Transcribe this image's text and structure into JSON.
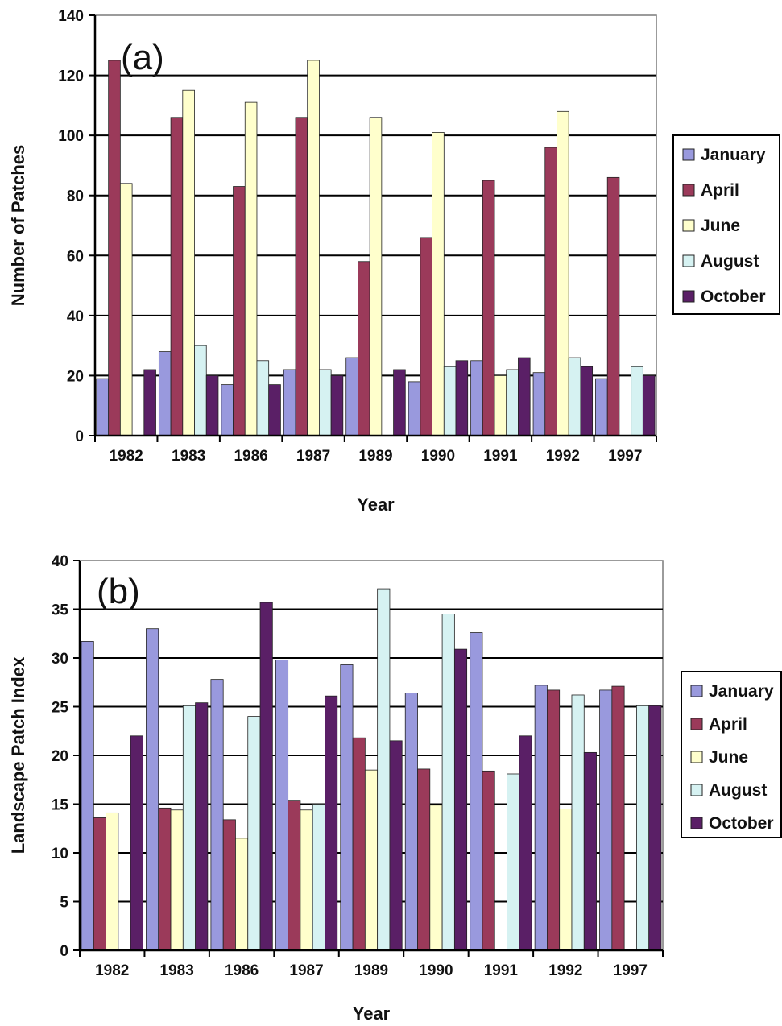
{
  "series_colors": {
    "January": "#9999dd",
    "April": "#9b3a5a",
    "June": "#ffffcc",
    "August": "#d6f2f2",
    "October": "#5a1f66"
  },
  "chart_data": [
    {
      "type": "bar",
      "panel_label": "(a)",
      "xlabel": "Year",
      "ylabel": "Number of Patches",
      "ylim": [
        0,
        140
      ],
      "yticks": [
        0,
        20,
        40,
        60,
        80,
        100,
        120,
        140
      ],
      "grid": true,
      "legend_position": "right",
      "categories": [
        "1982",
        "1983",
        "1986",
        "1987",
        "1989",
        "1990",
        "1991",
        "1992",
        "1997"
      ],
      "series": [
        {
          "name": "January",
          "values": [
            19,
            28,
            17,
            22,
            26,
            18,
            25,
            21,
            19
          ]
        },
        {
          "name": "April",
          "values": [
            125,
            106,
            83,
            106,
            58,
            66,
            85,
            96,
            86
          ]
        },
        {
          "name": "June",
          "values": [
            84,
            115,
            111,
            125,
            106,
            101,
            20,
            108,
            0
          ]
        },
        {
          "name": "August",
          "values": [
            0,
            30,
            25,
            22,
            0,
            23,
            22,
            26,
            23
          ]
        },
        {
          "name": "October",
          "values": [
            22,
            20,
            17,
            20,
            22,
            25,
            26,
            23,
            20
          ]
        }
      ]
    },
    {
      "type": "bar",
      "panel_label": "(b)",
      "xlabel": "Year",
      "ylabel": "Landscape Patch Index",
      "ylim": [
        0,
        40
      ],
      "yticks": [
        0,
        5,
        10,
        15,
        20,
        25,
        30,
        35,
        40
      ],
      "grid": true,
      "legend_position": "right",
      "categories": [
        "1982",
        "1983",
        "1986",
        "1987",
        "1989",
        "1990",
        "1991",
        "1992",
        "1997"
      ],
      "series": [
        {
          "name": "January",
          "values": [
            31.7,
            33.0,
            27.8,
            29.8,
            29.3,
            26.4,
            32.6,
            27.2,
            26.7
          ]
        },
        {
          "name": "April",
          "values": [
            13.6,
            14.6,
            13.4,
            15.4,
            21.8,
            18.6,
            18.4,
            26.7,
            27.1
          ]
        },
        {
          "name": "June",
          "values": [
            14.1,
            14.4,
            11.5,
            14.4,
            18.5,
            14.9,
            0,
            14.5,
            0
          ]
        },
        {
          "name": "August",
          "values": [
            0,
            25.1,
            24.0,
            15.0,
            37.1,
            34.5,
            18.1,
            26.2,
            25.1
          ]
        },
        {
          "name": "October",
          "values": [
            22.0,
            25.4,
            35.7,
            26.1,
            21.5,
            30.9,
            22.0,
            20.3,
            25.1
          ]
        }
      ]
    }
  ]
}
